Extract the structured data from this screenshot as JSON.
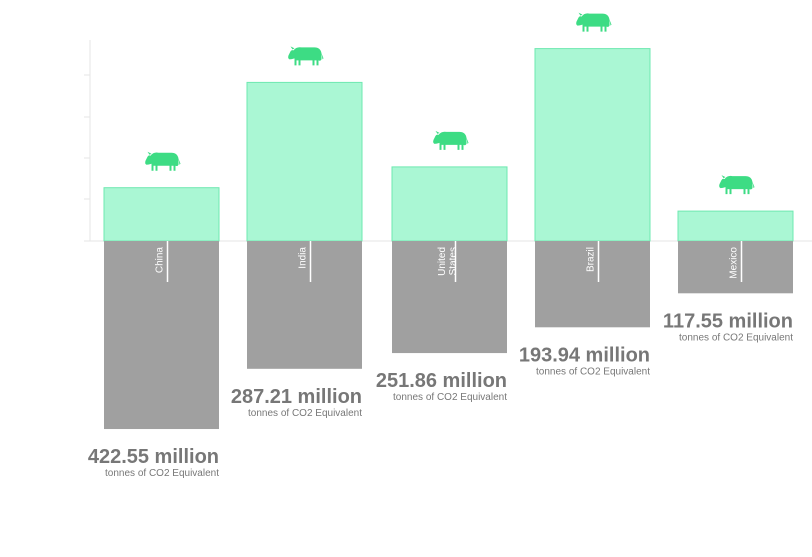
{
  "chart_data": {
    "type": "bar",
    "categories": [
      "China",
      "India",
      "United States",
      "Brazil",
      "Mexico"
    ],
    "category_lines": [
      [
        "China"
      ],
      [
        "India"
      ],
      [
        "United",
        "States"
      ],
      [
        "Brazil"
      ],
      [
        "Mexico"
      ]
    ],
    "series": [
      {
        "values": [
          41,
          122,
          57,
          148,
          23
        ]
      },
      {
        "values": [
          422.55,
          287.21,
          251.86,
          193.94,
          117.55
        ]
      }
    ],
    "value_labels": [
      "422.55 million",
      "287.21 million",
      "251.86 million",
      "193.94 million",
      "117.55 million"
    ],
    "unit_label": "tonnes of CO2 Equivalent",
    "colors": {
      "upper_bar": "#aaf7d4",
      "upper_bar_border": "#6ee8b0",
      "lower_bar": "#a0a0a0",
      "icon": "#3ddc84",
      "text": "#777777",
      "axis": "#e6e6e6"
    },
    "icon": "cow-icon"
  }
}
